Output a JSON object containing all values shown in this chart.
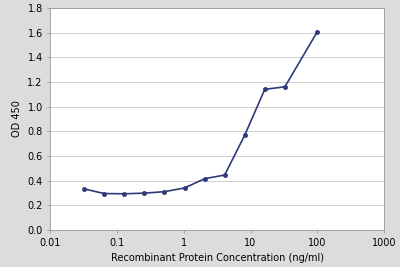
{
  "x_values": [
    0.032,
    0.064,
    0.128,
    0.256,
    0.512,
    1.024,
    2.048,
    4.096,
    8.192,
    16.384,
    32.768,
    100.0
  ],
  "y_values": [
    0.332,
    0.295,
    0.293,
    0.298,
    0.31,
    0.34,
    0.415,
    0.445,
    0.768,
    1.14,
    1.16,
    1.605
  ],
  "line_color": "#2e3a7a",
  "marker_color": "#2e3a7a",
  "marker_style": "o",
  "marker_size": 3,
  "line_width": 1.2,
  "xlabel": "Recombinant Protein Concentration (ng/ml)",
  "ylabel": "OD 450",
  "xlim": [
    0.01,
    1000
  ],
  "ylim": [
    0,
    1.8
  ],
  "yticks": [
    0,
    0.2,
    0.4,
    0.6,
    0.8,
    1.0,
    1.2,
    1.4,
    1.6,
    1.8
  ],
  "xtick_labels": [
    "0.01",
    "0.1",
    "1",
    "10",
    "100",
    "1000"
  ],
  "xtick_vals": [
    0.01,
    0.1,
    1,
    10,
    100,
    1000
  ],
  "xlabel_fontsize": 7,
  "ylabel_fontsize": 7,
  "tick_fontsize": 7,
  "background_color": "#ffffff",
  "grid_color": "#c8c8c8",
  "figure_facecolor": "#dcdcdc",
  "spine_color": "#999999"
}
